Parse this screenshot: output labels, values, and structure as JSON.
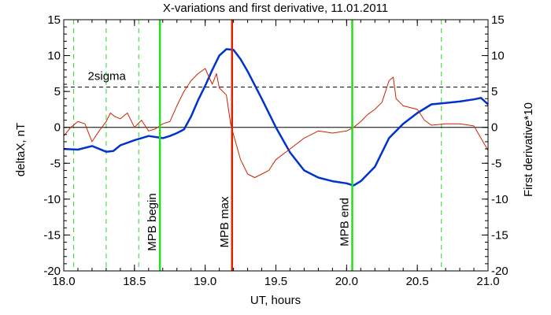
{
  "chart_data": {
    "type": "line",
    "title": "X-variations and first derivative, 11.01.2011",
    "xlabel": "UT, hours",
    "ylabel_left": "deltaX, nT",
    "ylabel_right": "First derivative*10",
    "xlim": [
      18.0,
      21.0
    ],
    "ylim": [
      -20,
      15
    ],
    "x_ticks": [
      "18.0",
      "18.5",
      "19.0",
      "19.5",
      "20.0",
      "20.5",
      "21.0"
    ],
    "y_ticks": [
      "-20",
      "-15",
      "-10",
      "-5",
      "0",
      "5",
      "10",
      "15"
    ],
    "colors": {
      "deltaX": "#0033cc",
      "derivative": "#cc2200",
      "mpb": "#22dd22",
      "mpb_max": "#dd2200"
    },
    "series": [
      {
        "name": "deltaX, nT",
        "color": "#0033cc",
        "x": [
          18.0,
          18.1,
          18.2,
          18.3,
          18.35,
          18.4,
          18.5,
          18.6,
          18.7,
          18.75,
          18.8,
          18.85,
          18.9,
          18.95,
          19.0,
          19.05,
          19.1,
          19.15,
          19.2,
          19.25,
          19.3,
          19.4,
          19.5,
          19.6,
          19.7,
          19.8,
          19.9,
          20.0,
          20.05,
          20.1,
          20.2,
          20.3,
          20.4,
          20.5,
          20.6,
          20.7,
          20.8,
          20.9,
          20.95,
          21.0
        ],
        "y": [
          -3.0,
          -3.1,
          -2.6,
          -3.4,
          -3.3,
          -2.5,
          -1.8,
          -1.2,
          -1.5,
          -1.2,
          -0.8,
          -0.3,
          1.5,
          3.8,
          5.8,
          8.0,
          10.0,
          10.9,
          10.8,
          9.5,
          7.8,
          4.0,
          0.0,
          -3.5,
          -6.0,
          -7.0,
          -7.5,
          -7.8,
          -8.1,
          -7.5,
          -5.5,
          -1.5,
          0.5,
          2.0,
          3.2,
          3.4,
          3.6,
          3.9,
          4.1,
          3.2
        ]
      },
      {
        "name": "First derivative*10",
        "color": "#cc2200",
        "x": [
          18.0,
          18.05,
          18.1,
          18.15,
          18.2,
          18.25,
          18.3,
          18.33,
          18.36,
          18.4,
          18.45,
          18.5,
          18.55,
          18.6,
          18.65,
          18.7,
          18.75,
          18.8,
          18.85,
          18.9,
          18.95,
          19.0,
          19.05,
          19.08,
          19.1,
          19.15,
          19.18,
          19.2,
          19.25,
          19.3,
          19.35,
          19.4,
          19.45,
          19.5,
          19.6,
          19.7,
          19.8,
          19.9,
          20.0,
          20.05,
          20.1,
          20.15,
          20.2,
          20.25,
          20.3,
          20.33,
          20.35,
          20.4,
          20.5,
          20.55,
          20.6,
          20.7,
          20.8,
          20.9,
          20.95,
          21.0
        ],
        "y": [
          -1.2,
          0.0,
          0.8,
          0.5,
          -2.0,
          -0.5,
          0.8,
          2.0,
          1.5,
          1.2,
          2.0,
          0.0,
          1.0,
          -0.5,
          -0.2,
          0.5,
          0.8,
          3.0,
          5.0,
          6.5,
          7.5,
          8.2,
          6.0,
          7.5,
          5.5,
          4.5,
          0.5,
          -1.0,
          -4.5,
          -6.5,
          -7.0,
          -6.5,
          -6.0,
          -4.5,
          -3.0,
          -1.5,
          -0.5,
          -0.8,
          -0.5,
          0.0,
          0.8,
          1.8,
          2.5,
          3.5,
          6.5,
          7.0,
          4.0,
          3.0,
          2.5,
          1.0,
          0.3,
          0.5,
          0.5,
          0.2,
          -1.5,
          -3.2
        ]
      }
    ],
    "two_sigma": {
      "label": "2sigma",
      "value": 5.6
    },
    "zero_line": 0,
    "vertical_markers": [
      {
        "label": "MPB begin",
        "x": 18.68,
        "color": "#22dd22"
      },
      {
        "label": "MPB max",
        "x": 19.19,
        "color": "#dd2200"
      },
      {
        "label": "MPB end",
        "x": 20.04,
        "color": "#22dd22"
      }
    ],
    "dashed_verticals": [
      18.07,
      18.3,
      18.53,
      20.67
    ],
    "grid": false,
    "legend": "none"
  }
}
